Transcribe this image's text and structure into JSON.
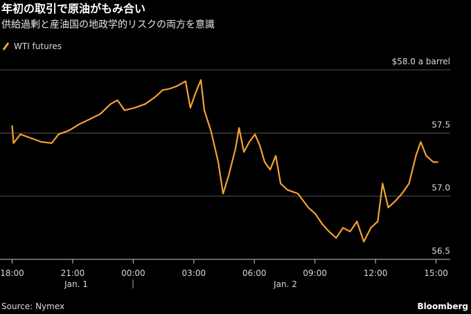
{
  "chart_data": {
    "type": "line",
    "title": "年初の取引で原油がもみ合い",
    "subtitle": "供給過剰と産油国の地政学的リスクの両方を意識",
    "source": "Source: Nymex",
    "brand": "Bloomberg",
    "date_labels": [
      "Jan. 1",
      "Jan. 2"
    ],
    "x": [
      18.0,
      18.07,
      18.41,
      18.93,
      19.44,
      19.96,
      20.3,
      20.82,
      21.33,
      21.85,
      22.36,
      22.88,
      23.22,
      23.57,
      24.08,
      24.6,
      25.12,
      25.46,
      25.8,
      26.14,
      26.59,
      26.83,
      27.07,
      27.35,
      27.52,
      27.86,
      28.21,
      28.45,
      28.72,
      29.07,
      29.24,
      29.48,
      29.75,
      30.03,
      30.27,
      30.51,
      30.78,
      31.06,
      31.3,
      31.64,
      32.16,
      32.67,
      33.02,
      33.36,
      33.7,
      34.05,
      34.39,
      34.74,
      35.08,
      35.42,
      35.77,
      36.11,
      36.35,
      36.63,
      36.97,
      37.31,
      37.66,
      38.0,
      38.24,
      38.51,
      38.86,
      39.1
    ],
    "series": [
      {
        "name": "WTI futures",
        "color": "#f7a234",
        "values": [
          57.56,
          57.42,
          57.49,
          57.46,
          57.43,
          57.42,
          57.49,
          57.52,
          57.57,
          57.61,
          57.65,
          57.73,
          57.76,
          57.68,
          57.7,
          57.73,
          57.79,
          57.84,
          57.85,
          57.87,
          57.91,
          57.7,
          57.81,
          57.92,
          57.68,
          57.51,
          57.27,
          57.02,
          57.16,
          57.38,
          57.54,
          57.35,
          57.43,
          57.49,
          57.4,
          57.27,
          57.21,
          57.32,
          57.1,
          57.05,
          57.02,
          56.91,
          56.86,
          56.78,
          56.72,
          56.67,
          56.75,
          56.72,
          56.8,
          56.64,
          56.75,
          56.8,
          57.1,
          56.91,
          56.96,
          57.02,
          57.1,
          57.32,
          57.43,
          57.32,
          57.27,
          57.27
        ]
      }
    ],
    "xlim": [
      17.4,
      39.7
    ],
    "xticks": [
      {
        "value": 18,
        "label": "18:00"
      },
      {
        "value": 21,
        "label": "21:00"
      },
      {
        "value": 24,
        "label": "00:00"
      },
      {
        "value": 27,
        "label": "03:00"
      },
      {
        "value": 30,
        "label": "06:00"
      },
      {
        "value": 33,
        "label": "09:00"
      },
      {
        "value": 36,
        "label": "12:00"
      },
      {
        "value": 39,
        "label": "15:00"
      }
    ],
    "ylim": [
      56.5,
      58.0
    ],
    "yticks": [
      {
        "value": 56.5,
        "label": "56.5"
      },
      {
        "value": 57.0,
        "label": "57.0"
      },
      {
        "value": 57.5,
        "label": "57.5"
      },
      {
        "value": 58.0,
        "label": "$58.0 a barrel"
      }
    ],
    "grid": true
  }
}
